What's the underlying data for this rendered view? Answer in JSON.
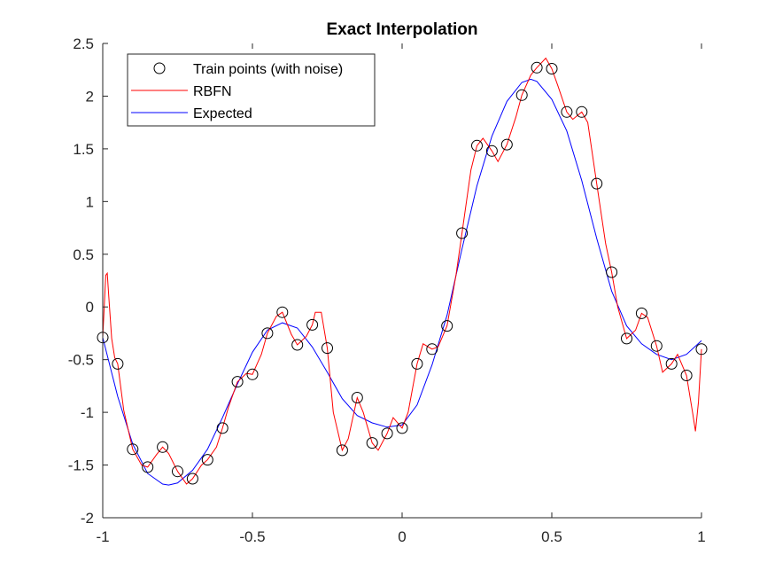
{
  "chart_data": {
    "type": "line",
    "title": "Exact Interpolation",
    "xlabel": "",
    "ylabel": "",
    "xlim": [
      -1,
      1
    ],
    "ylim": [
      -2,
      2.5
    ],
    "xticks": [
      -1,
      -0.5,
      0,
      0.5,
      1
    ],
    "xtick_labels": [
      "-1",
      "-0.5",
      "0",
      "0.5",
      "1"
    ],
    "yticks": [
      -2,
      -1.5,
      -1,
      -0.5,
      0,
      0.5,
      1,
      1.5,
      2,
      2.5
    ],
    "ytick_labels": [
      "-2",
      "-1.5",
      "-1",
      "-0.5",
      "0",
      "0.5",
      "1",
      "1.5",
      "2",
      "2.5"
    ],
    "grid": false,
    "legend_position": "top-left",
    "series": [
      {
        "name": "Train points (with noise)",
        "style": "markers",
        "marker": "open-circle",
        "color": "#000000",
        "x": [
          -1.0,
          -0.95,
          -0.9,
          -0.85,
          -0.8,
          -0.75,
          -0.7,
          -0.65,
          -0.6,
          -0.55,
          -0.5,
          -0.45,
          -0.4,
          -0.35,
          -0.3,
          -0.25,
          -0.2,
          -0.15,
          -0.1,
          -0.05,
          0.0,
          0.05,
          0.1,
          0.15,
          0.2,
          0.25,
          0.3,
          0.35,
          0.4,
          0.45,
          0.5,
          0.55,
          0.6,
          0.65,
          0.7,
          0.75,
          0.8,
          0.85,
          0.9,
          0.95,
          1.0
        ],
        "y": [
          -0.29,
          -0.54,
          -1.35,
          -1.52,
          -1.33,
          -1.56,
          -1.63,
          -1.45,
          -1.15,
          -0.71,
          -0.64,
          -0.25,
          -0.05,
          -0.36,
          -0.17,
          -0.39,
          -1.36,
          -0.86,
          -1.29,
          -1.2,
          -1.15,
          -0.54,
          -0.4,
          -0.18,
          0.7,
          1.53,
          1.48,
          1.54,
          2.01,
          2.27,
          2.26,
          1.85,
          1.85,
          1.17,
          0.33,
          -0.3,
          -0.06,
          -0.37,
          -0.54,
          -0.65,
          -0.4
        ]
      },
      {
        "name": "RBFN",
        "style": "line",
        "color": "#ff0000",
        "x": [
          -1.0,
          -0.99,
          -0.985,
          -0.98,
          -0.97,
          -0.96,
          -0.95,
          -0.93,
          -0.9,
          -0.87,
          -0.85,
          -0.82,
          -0.8,
          -0.78,
          -0.75,
          -0.72,
          -0.7,
          -0.67,
          -0.65,
          -0.62,
          -0.6,
          -0.58,
          -0.55,
          -0.52,
          -0.5,
          -0.47,
          -0.45,
          -0.42,
          -0.4,
          -0.37,
          -0.35,
          -0.32,
          -0.3,
          -0.29,
          -0.27,
          -0.25,
          -0.23,
          -0.2,
          -0.18,
          -0.15,
          -0.13,
          -0.1,
          -0.08,
          -0.05,
          -0.03,
          0.0,
          0.02,
          0.05,
          0.07,
          0.1,
          0.12,
          0.15,
          0.18,
          0.2,
          0.23,
          0.25,
          0.27,
          0.3,
          0.32,
          0.35,
          0.38,
          0.4,
          0.43,
          0.45,
          0.48,
          0.5,
          0.52,
          0.55,
          0.57,
          0.6,
          0.62,
          0.65,
          0.68,
          0.7,
          0.72,
          0.75,
          0.78,
          0.8,
          0.82,
          0.85,
          0.87,
          0.9,
          0.92,
          0.95,
          0.97,
          0.98,
          0.99,
          1.0
        ],
        "y": [
          -0.29,
          0.3,
          0.32,
          0.1,
          -0.3,
          -0.48,
          -0.54,
          -0.98,
          -1.35,
          -1.5,
          -1.52,
          -1.4,
          -1.33,
          -1.39,
          -1.56,
          -1.68,
          -1.63,
          -1.5,
          -1.45,
          -1.33,
          -1.15,
          -0.95,
          -0.71,
          -0.63,
          -0.64,
          -0.45,
          -0.25,
          -0.09,
          -0.05,
          -0.26,
          -0.36,
          -0.28,
          -0.17,
          -0.05,
          -0.05,
          -0.39,
          -1.0,
          -1.36,
          -1.25,
          -0.86,
          -1.0,
          -1.29,
          -1.36,
          -1.2,
          -1.05,
          -1.15,
          -1.0,
          -0.54,
          -0.35,
          -0.4,
          -0.38,
          -0.18,
          0.3,
          0.7,
          1.3,
          1.53,
          1.6,
          1.48,
          1.38,
          1.54,
          1.8,
          2.01,
          2.2,
          2.27,
          2.36,
          2.26,
          2.1,
          1.85,
          1.78,
          1.85,
          1.75,
          1.17,
          0.6,
          0.33,
          0.0,
          -0.3,
          -0.22,
          -0.06,
          -0.1,
          -0.37,
          -0.62,
          -0.54,
          -0.45,
          -0.65,
          -1.0,
          -1.18,
          -0.9,
          -0.4
        ]
      },
      {
        "name": "Expected",
        "style": "line",
        "color": "#0000ff",
        "x": [
          -1.0,
          -0.95,
          -0.9,
          -0.85,
          -0.8,
          -0.78,
          -0.75,
          -0.7,
          -0.65,
          -0.6,
          -0.55,
          -0.5,
          -0.45,
          -0.4,
          -0.35,
          -0.3,
          -0.25,
          -0.2,
          -0.15,
          -0.1,
          -0.05,
          0.0,
          0.05,
          0.1,
          0.15,
          0.2,
          0.25,
          0.3,
          0.35,
          0.4,
          0.43,
          0.45,
          0.5,
          0.55,
          0.6,
          0.65,
          0.7,
          0.75,
          0.8,
          0.85,
          0.9,
          0.95,
          1.0
        ],
        "y": [
          -0.29,
          -0.85,
          -1.3,
          -1.58,
          -1.68,
          -1.69,
          -1.67,
          -1.55,
          -1.35,
          -1.05,
          -0.73,
          -0.43,
          -0.22,
          -0.15,
          -0.2,
          -0.38,
          -0.62,
          -0.87,
          -1.03,
          -1.1,
          -1.14,
          -1.12,
          -0.93,
          -0.55,
          -0.08,
          0.55,
          1.15,
          1.62,
          1.95,
          2.13,
          2.16,
          2.14,
          1.97,
          1.67,
          1.2,
          0.65,
          0.15,
          -0.18,
          -0.35,
          -0.45,
          -0.5,
          -0.45,
          -0.32
        ]
      }
    ]
  }
}
